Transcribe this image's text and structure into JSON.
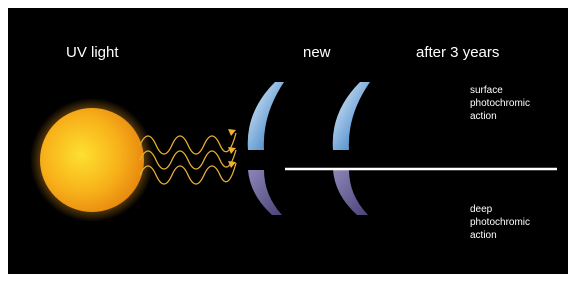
{
  "labels": {
    "uv_light": "UV light",
    "new": "new",
    "after_3_years": "after 3 years"
  },
  "surface_action": [
    "surface",
    "photochromic",
    "action"
  ],
  "deep_action": [
    "deep",
    "photochromic",
    "action"
  ]
}
